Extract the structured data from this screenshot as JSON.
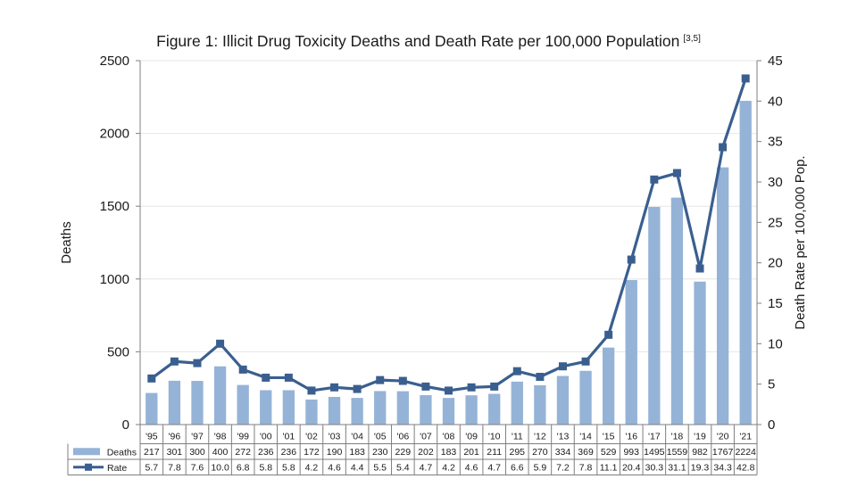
{
  "chart_data": {
    "type": "bar+line",
    "title": "Figure 1: Illicit Drug Toxicity Deaths and Death Rate per 100,000 Population",
    "title_superscript": "[3,5]",
    "categories": [
      "'95",
      "'96",
      "'97",
      "'98",
      "'99",
      "'00",
      "'01",
      "'02",
      "'03",
      "'04",
      "'05",
      "'06",
      "'07",
      "'08",
      "'09",
      "'10",
      "'11",
      "'12",
      "'13",
      "'14",
      "'15",
      "'16",
      "'17",
      "'18",
      "'19",
      "'20",
      "'21"
    ],
    "series": [
      {
        "name": "Deaths",
        "type": "bar",
        "axis": "left",
        "color": "#95b3d7",
        "values": [
          217,
          301,
          300,
          400,
          272,
          236,
          236,
          172,
          190,
          183,
          230,
          229,
          202,
          183,
          201,
          211,
          295,
          270,
          334,
          369,
          529,
          993,
          1495,
          1559,
          982,
          1767,
          2224
        ]
      },
      {
        "name": "Rate",
        "type": "line",
        "axis": "right",
        "color": "#3a5f8f",
        "values": [
          5.7,
          7.8,
          7.6,
          10.0,
          6.8,
          5.8,
          5.8,
          4.2,
          4.6,
          4.4,
          5.5,
          5.4,
          4.7,
          4.2,
          4.6,
          4.7,
          6.6,
          5.9,
          7.2,
          7.8,
          11.1,
          20.4,
          30.3,
          31.1,
          19.3,
          34.3,
          42.8
        ]
      }
    ],
    "ylabel": "Deaths",
    "y2label": "Death Rate per 100,000 Pop.",
    "ylim": [
      0,
      2500
    ],
    "y2lim": [
      0,
      45
    ],
    "yticks": [
      0,
      500,
      1000,
      1500,
      2000,
      2500
    ],
    "y2ticks": [
      0,
      5,
      10,
      15,
      20,
      25,
      30,
      35,
      40,
      45
    ],
    "grid": "horizontal",
    "data_table": true,
    "rate_labels": [
      "5.7",
      "7.8",
      "7.6",
      "10.0",
      "6.8",
      "5.8",
      "5.8",
      "4.2",
      "4.6",
      "4.4",
      "5.5",
      "5.4",
      "4.7",
      "4.2",
      "4.6",
      "4.7",
      "6.6",
      "5.9",
      "7.2",
      "7.8",
      "11.1",
      "20.4",
      "30.3",
      "31.1",
      "19.3",
      "34.3",
      "42.8"
    ]
  }
}
